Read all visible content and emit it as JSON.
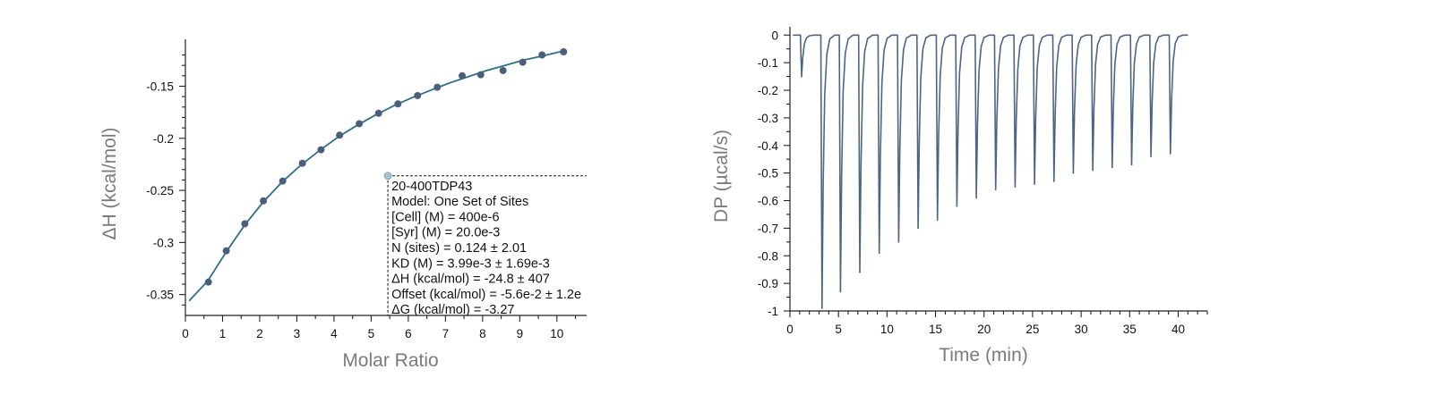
{
  "chart_data": [
    {
      "type": "scatter",
      "title": "",
      "xlabel": "Molar Ratio",
      "ylabel": "ΔH (kcal/mol)",
      "xlim": [
        0,
        10.8
      ],
      "ylim": [
        -0.37,
        -0.105
      ],
      "x_ticks": [
        0,
        1,
        2,
        3,
        4,
        5,
        6,
        7,
        8,
        9,
        10
      ],
      "y_ticks": [
        -0.35,
        -0.3,
        -0.25,
        -0.2,
        -0.15
      ],
      "y_tick_labels": [
        "-0.35",
        "-0.3",
        "-0.25",
        "-0.2",
        "-0.15"
      ],
      "series": [
        {
          "kind": "points",
          "color": "#4a5f7a",
          "x": [
            0.62,
            1.1,
            1.6,
            2.1,
            2.62,
            3.15,
            3.65,
            4.15,
            4.68,
            5.2,
            5.72,
            6.25,
            6.78,
            7.45,
            7.95,
            8.55,
            9.08,
            9.6,
            10.18
          ],
          "y": [
            -0.338,
            -0.308,
            -0.282,
            -0.26,
            -0.241,
            -0.224,
            -0.211,
            -0.197,
            -0.186,
            -0.176,
            -0.167,
            -0.159,
            -0.151,
            -0.14,
            -0.139,
            -0.135,
            -0.127,
            -0.12,
            -0.117
          ]
        },
        {
          "kind": "fit",
          "color": "#2f6f8a",
          "x": [
            0.1,
            0.6,
            1.1,
            1.6,
            2.1,
            2.6,
            3.1,
            3.6,
            4.1,
            4.6,
            5.1,
            5.6,
            6.1,
            6.6,
            7.1,
            7.6,
            8.1,
            8.6,
            9.1,
            9.6,
            10.2
          ],
          "y": [
            -0.356,
            -0.337,
            -0.309,
            -0.283,
            -0.261,
            -0.242,
            -0.226,
            -0.212,
            -0.199,
            -0.188,
            -0.178,
            -0.169,
            -0.161,
            -0.154,
            -0.147,
            -0.141,
            -0.135,
            -0.13,
            -0.125,
            -0.121,
            -0.116
          ]
        }
      ],
      "marker": {
        "x": 5.45,
        "y": -0.236,
        "color": "#a9c3d6"
      },
      "annotation": {
        "lines": [
          "20-400TDP43",
          "Model: One Set of Sites",
          "[Cell] (M) = 400e-6",
          "[Syr] (M) = 20.0e-3",
          "N (sites) = 0.124 ± 2.01",
          "KD (M) = 3.99e-3 ± 1.69e-3",
          "ΔH (kcal/mol) = -24.8 ± 407",
          "Offset (kcal/mol) = -5.6e-2 ± 1.2e",
          "ΔG (kcal/mol) = -3.27"
        ]
      }
    },
    {
      "type": "line",
      "title": "",
      "xlabel": "Time (min)",
      "ylabel": "DP (µcal/s)",
      "xlim": [
        0,
        43
      ],
      "ylim": [
        -1.0,
        0.03
      ],
      "x_ticks": [
        0,
        5,
        10,
        15,
        20,
        25,
        30,
        35,
        40
      ],
      "y_ticks": [
        0,
        -0.1,
        -0.2,
        -0.3,
        -0.4,
        -0.5,
        -0.6,
        -0.7,
        -0.8,
        -0.9,
        -1
      ],
      "y_tick_labels": [
        "0",
        "-0.1",
        "-0.2",
        "-0.3",
        "-0.4",
        "-0.5",
        "-0.6",
        "-0.7",
        "-0.8",
        "-0.9",
        "-1"
      ],
      "series": [
        {
          "name": "",
          "color": "#4d6585",
          "baseline": 0,
          "x_start": 0.3,
          "x_end": 41.0,
          "injection_times": [
            1.2,
            3.3,
            5.2,
            7.2,
            9.2,
            11.2,
            13.2,
            15.2,
            17.2,
            19.2,
            21.2,
            23.2,
            25.2,
            27.2,
            29.2,
            31.2,
            33.2,
            35.2,
            37.2,
            39.2
          ],
          "peak_values": [
            -0.15,
            -0.99,
            -0.93,
            -0.86,
            -0.79,
            -0.75,
            -0.7,
            -0.67,
            -0.62,
            -0.59,
            -0.56,
            -0.55,
            -0.54,
            -0.53,
            -0.5,
            -0.49,
            -0.48,
            -0.47,
            -0.44,
            -0.43
          ]
        }
      ]
    }
  ]
}
